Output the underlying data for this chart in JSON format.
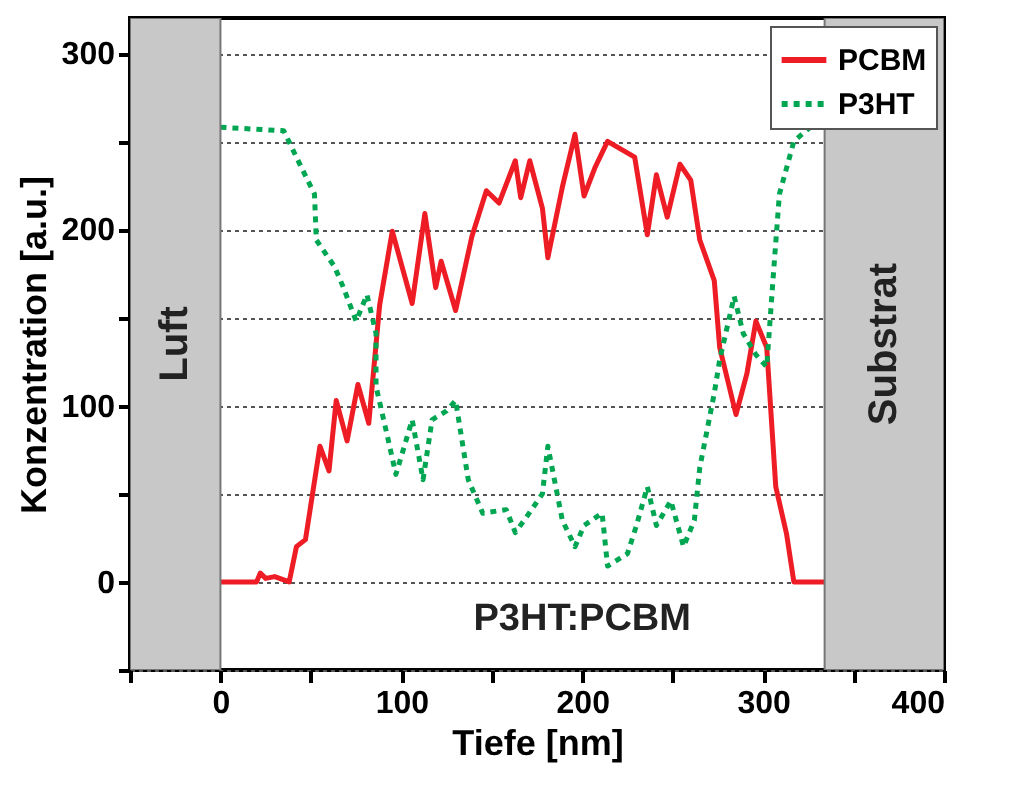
{
  "chart_data": {
    "type": "line",
    "xlabel": "Tiefe [nm]",
    "ylabel": "Konzentration [a.u.]",
    "xlim": [
      -50,
      400
    ],
    "xticks": [
      {
        "value": -50,
        "label": null
      },
      0,
      {
        "value": 50,
        "label": null
      },
      100,
      {
        "value": 150,
        "label": null
      },
      200,
      {
        "value": 250,
        "label": null
      },
      300,
      {
        "value": 350,
        "label": null
      },
      400
    ],
    "ylim": [
      -50,
      320
    ],
    "yticks": [
      {
        "value": -50,
        "label": null
      },
      0,
      {
        "value": 50,
        "label": null
      },
      100,
      {
        "value": 150,
        "label": null
      },
      200,
      {
        "value": 250,
        "label": null
      },
      300
    ],
    "grid": "y",
    "legend": "top right",
    "marker": "none",
    "bands": [
      {
        "axis": "x",
        "from": -50,
        "to": 0,
        "label": "Luft",
        "color": "#c8c8c8"
      },
      {
        "axis": "x",
        "from": 334,
        "to": 400,
        "label": "Substrat",
        "color": "#c8c8c8"
      }
    ],
    "annotations": [
      "P3HT:PCBM"
    ],
    "series": [
      {
        "name": "PCBM",
        "color": "#ee1c24",
        "line_style": "solid",
        "x": [
          0,
          20,
          22,
          25,
          30,
          38,
          42,
          47,
          55,
          60,
          64,
          70,
          76,
          82,
          88,
          95,
          106,
          113,
          119,
          122,
          130,
          139,
          147,
          154,
          163,
          166,
          171,
          178,
          181,
          189,
          196,
          201,
          207,
          214,
          229,
          236,
          241,
          247,
          254,
          260,
          265,
          273,
          276,
          285,
          291,
          296,
          302,
          307,
          313,
          317,
          334
        ],
        "values": [
          0,
          0,
          5,
          2,
          3,
          0,
          20,
          24,
          77,
          63,
          103,
          80,
          112,
          90,
          157,
          199,
          158,
          209,
          167,
          182,
          154,
          196,
          222,
          215,
          239,
          218,
          239,
          212,
          184,
          224,
          254,
          219,
          235,
          250,
          241,
          197,
          231,
          207,
          237,
          228,
          194,
          171,
          133,
          95,
          118,
          148,
          133,
          54,
          27,
          0,
          0
        ]
      },
      {
        "name": "P3HT",
        "color": "#00a651",
        "line_style": "dotted",
        "x": [
          0,
          35,
          42,
          52,
          53,
          63,
          68,
          75,
          81,
          86,
          86,
          92,
          97,
          106,
          112,
          117,
          125,
          130,
          137,
          145,
          158,
          163,
          170,
          178,
          181,
          189,
          196,
          201,
          211,
          214,
          225,
          230,
          236,
          241,
          249,
          256,
          262,
          265,
          273,
          276,
          284,
          289,
          296,
          302,
          306,
          309,
          317,
          326
        ],
        "values": [
          258,
          256,
          241,
          220,
          194,
          179,
          167,
          148,
          163,
          141,
          111,
          84,
          61,
          92,
          58,
          92,
          97,
          103,
          58,
          39,
          41,
          28,
          38,
          50,
          77,
          35,
          20,
          32,
          39,
          9,
          16,
          32,
          54,
          32,
          46,
          20,
          35,
          65,
          107,
          126,
          162,
          141,
          129,
          122,
          179,
          220,
          250,
          258
        ]
      }
    ]
  }
}
